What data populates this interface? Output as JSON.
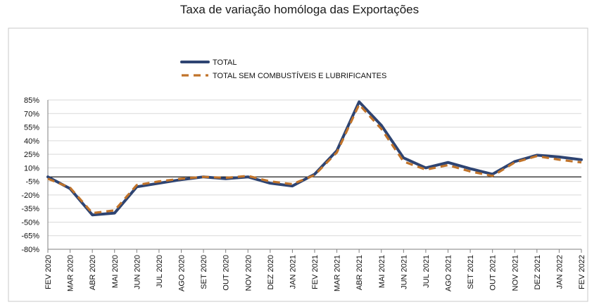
{
  "chart_data": {
    "type": "line",
    "title": "Taxa de variação homóloga das Exportações",
    "xlabel": "",
    "ylabel": "",
    "ylim": [
      -80,
      85
    ],
    "yticks": [
      "85%",
      "70%",
      "55%",
      "40%",
      "25%",
      "10%",
      "-5%",
      "-20%",
      "-35%",
      "-50%",
      "-65%",
      "-80%"
    ],
    "categories": [
      "FEV 2020",
      "MAR 2020",
      "ABR 2020",
      "MAI 2020",
      "JUN 2020",
      "JUL 2020",
      "AGO 2020",
      "SET 2020",
      "OUT 2020",
      "NOV 2020",
      "DEZ 2020",
      "JAN 2021",
      "FEV 2021",
      "MAR 2021",
      "ABR 2021",
      "MAI 2021",
      "JUN 2021",
      "JUL 2021",
      "AGO 2021",
      "SET 2021",
      "OUT 2021",
      "NOV 2021",
      "DEZ 2021",
      "JAN 2022",
      "FEV 2022"
    ],
    "series": [
      {
        "name": "TOTAL",
        "color": "#2e4472",
        "style": "solid",
        "values": [
          0,
          -13,
          -42,
          -40,
          -11,
          -7,
          -3,
          0,
          -2,
          0,
          -7,
          -10,
          3,
          29,
          83,
          57,
          21,
          10,
          16,
          9,
          3,
          17,
          24,
          22,
          19
        ]
      },
      {
        "name": "TOTAL SEM COMBUSTÍVEIS E LUBRIFICANTES",
        "color": "#c0732a",
        "style": "dashed",
        "values": [
          -2,
          -12,
          -40,
          -37,
          -9,
          -5,
          -2,
          0,
          -1,
          1,
          -5,
          -8,
          2,
          27,
          80,
          53,
          17,
          8,
          13,
          6,
          1,
          16,
          23,
          19,
          16
        ]
      }
    ],
    "zero_line": true,
    "grid": "horizontal",
    "legend_position": "top"
  }
}
